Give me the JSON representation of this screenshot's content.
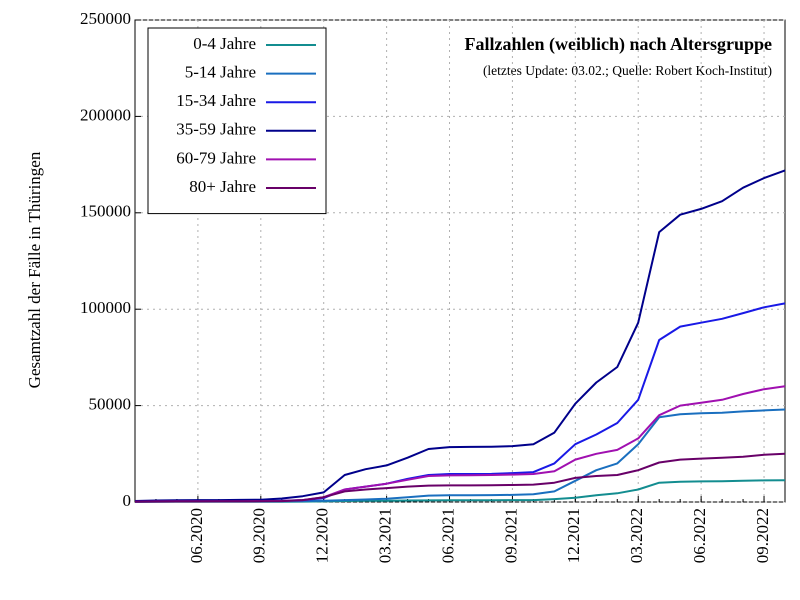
{
  "chart_data": {
    "type": "line",
    "title": "Fallzahlen (weiblich) nach Altersgruppe",
    "subtitle": "(letztes Update: 03.02.; Quelle: Robert Koch-Institut)",
    "y_label": "Gesamtzahl der Fälle in Thüringen",
    "x": [
      "03.2020",
      "04.2020",
      "05.2020",
      "06.2020",
      "07.2020",
      "08.2020",
      "09.2020",
      "10.2020",
      "11.2020",
      "12.2020",
      "01.2021",
      "02.2021",
      "03.2021",
      "04.2021",
      "05.2021",
      "06.2021",
      "07.2021",
      "08.2021",
      "09.2021",
      "10.2021",
      "11.2021",
      "12.2021",
      "01.2022",
      "02.2022",
      "03.2022",
      "04.2022",
      "05.2022",
      "06.2022",
      "07.2022",
      "08.2022",
      "09.2022",
      "10.2022"
    ],
    "xlim": [
      "03.2020",
      "10.2022"
    ],
    "xticks": [
      "06.2020",
      "09.2020",
      "12.2020",
      "03.2021",
      "06.2021",
      "09.2021",
      "12.2021",
      "03.2022",
      "06.2022",
      "09.2022"
    ],
    "ylim": [
      0,
      250000
    ],
    "yticks": [
      0,
      50000,
      100000,
      150000,
      200000,
      250000
    ],
    "grid": true,
    "legend": "upper left",
    "series": [
      {
        "name": "0-4 Jahre",
        "color": "#138d90",
        "values": [
          50,
          80,
          100,
          120,
          130,
          140,
          150,
          170,
          200,
          300,
          500,
          600,
          700,
          800,
          850,
          900,
          950,
          950,
          1000,
          1000,
          1500,
          2200,
          3500,
          4500,
          6500,
          10000,
          10500,
          10700,
          10800,
          11000,
          11200,
          11300
        ]
      },
      {
        "name": "5-14 Jahre",
        "color": "#1a6fbf",
        "values": [
          100,
          200,
          250,
          280,
          300,
          300,
          320,
          350,
          450,
          700,
          1000,
          1300,
          1700,
          2500,
          3300,
          3500,
          3500,
          3600,
          3700,
          4000,
          5500,
          11000,
          16500,
          20000,
          30000,
          44000,
          45500,
          46000,
          46300,
          47000,
          47500,
          48000
        ]
      },
      {
        "name": "15-34 Jahre",
        "color": "#1919e6",
        "values": [
          300,
          450,
          500,
          550,
          560,
          580,
          600,
          700,
          1000,
          2000,
          6500,
          8000,
          9500,
          12000,
          14000,
          14500,
          14500,
          14600,
          15000,
          15500,
          20000,
          30000,
          35000,
          41000,
          53000,
          84000,
          91000,
          93000,
          95000,
          98000,
          101000,
          103000
        ]
      },
      {
        "name": "35-59 Jahre",
        "color": "#00008b",
        "values": [
          500,
          800,
          900,
          1000,
          1000,
          1100,
          1200,
          1800,
          3000,
          5000,
          14000,
          17000,
          19000,
          23000,
          27500,
          28500,
          28600,
          28700,
          29000,
          30000,
          36000,
          51000,
          62000,
          70000,
          93000,
          140000,
          149000,
          152000,
          156000,
          163000,
          168000,
          172000
        ]
      },
      {
        "name": "60-79 Jahre",
        "color": "#a010b0",
        "values": [
          200,
          300,
          350,
          380,
          400,
          420,
          450,
          550,
          1000,
          2500,
          6500,
          8000,
          9500,
          11500,
          13500,
          13800,
          13900,
          14000,
          14200,
          14500,
          16000,
          22000,
          25000,
          27000,
          33000,
          45000,
          50000,
          51500,
          53000,
          56000,
          58500,
          60000
        ]
      },
      {
        "name": "80+ Jahre",
        "color": "#680068",
        "values": [
          100,
          200,
          250,
          280,
          300,
          320,
          350,
          450,
          1000,
          2500,
          5500,
          6500,
          7200,
          8000,
          8500,
          8600,
          8600,
          8700,
          8800,
          9000,
          10000,
          12500,
          13500,
          14000,
          16500,
          20500,
          22000,
          22500,
          23000,
          23500,
          24500,
          25000
        ]
      }
    ]
  }
}
